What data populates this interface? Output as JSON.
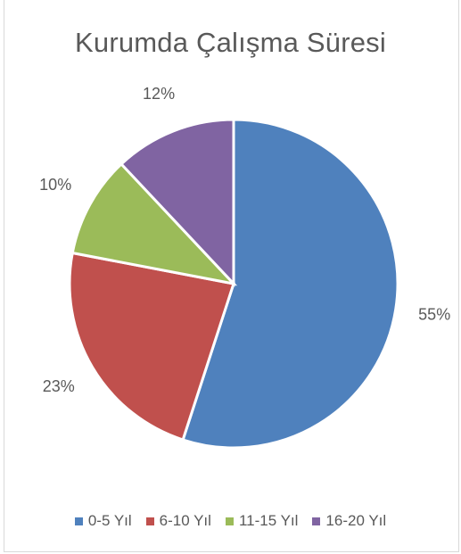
{
  "chart_data": {
    "type": "pie",
    "title": "Kurumda Çalışma Süresi",
    "categories": [
      "0-5 Yıl",
      "6-10 Yıl",
      "11-15 Yıl",
      "16-20 Yıl"
    ],
    "values": [
      55,
      23,
      10,
      12
    ],
    "data_labels": [
      "55%",
      "23%",
      "10%",
      "12%"
    ],
    "colors": [
      "#4F81BD",
      "#C0504D",
      "#9BBB59",
      "#8064A2"
    ],
    "legend_position": "bottom"
  }
}
